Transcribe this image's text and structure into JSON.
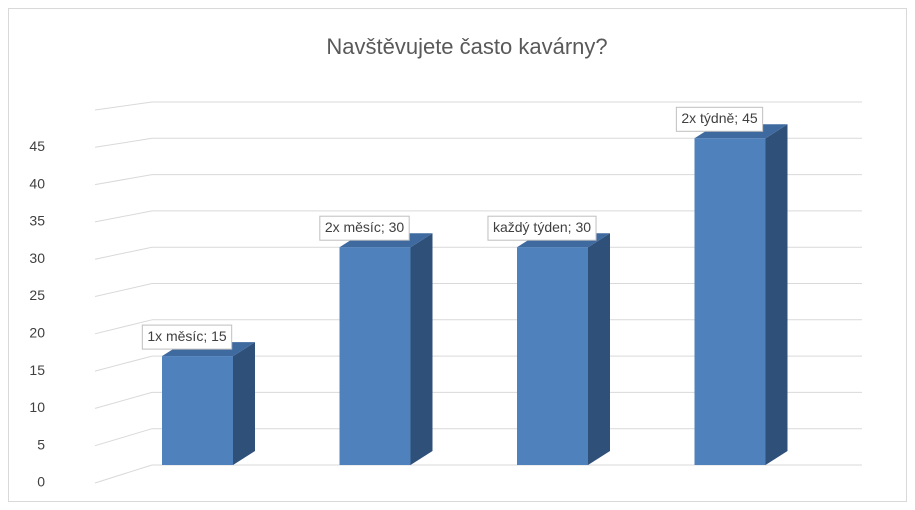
{
  "chart_data": {
    "type": "bar3d",
    "title": "Navštěvujete často kavárny?",
    "categories": [
      "1x měsíc",
      "2x měsíc",
      "každý týden",
      "2x týdně"
    ],
    "values": [
      15,
      30,
      30,
      45
    ],
    "value_labels": [
      "1x měsíc; 15",
      "2x měsíc; 30",
      "každý týden; 30",
      "2x týdně; 45"
    ],
    "color": "#4f81bd",
    "ylim": [
      0,
      50
    ],
    "yticks": [
      0,
      5,
      10,
      15,
      20,
      25,
      30,
      35,
      40,
      45
    ],
    "grid": true
  }
}
